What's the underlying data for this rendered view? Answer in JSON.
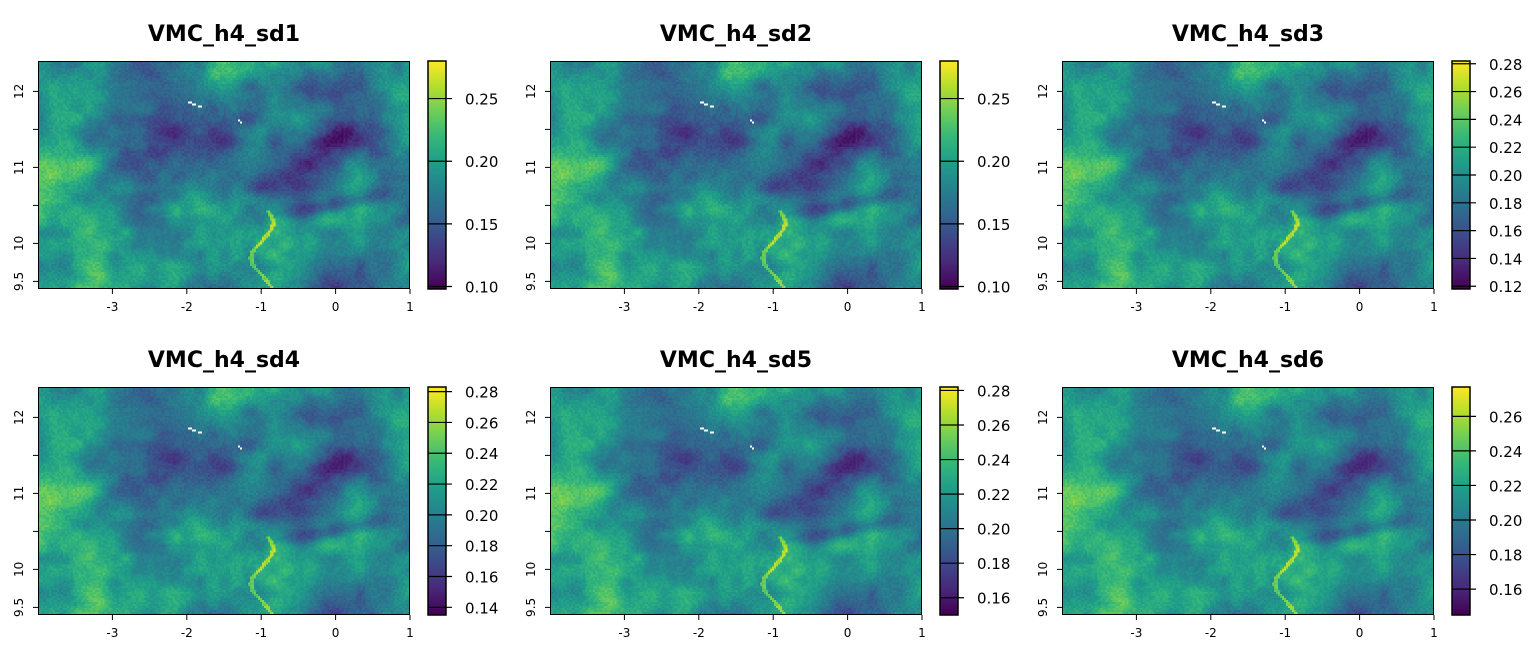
{
  "chart_data": [
    {
      "type": "heatmap",
      "title": "VMC_h4_sd1",
      "xlim": [
        -4,
        1
      ],
      "ylim": [
        9.4,
        12.4
      ],
      "xticks": [
        -3,
        -2,
        -1,
        0,
        1
      ],
      "yticks": [
        9.5,
        10,
        10.5,
        11,
        11.5,
        12
      ],
      "ytick_labels": [
        "9.5",
        "10",
        "",
        "11",
        "",
        "12"
      ],
      "legend": {
        "range": [
          0.098,
          0.28
        ],
        "ticks": [
          0.1,
          0.15,
          0.2,
          0.25
        ],
        "labels": [
          "0.10",
          "0.15",
          "0.20",
          "0.25"
        ]
      }
    },
    {
      "type": "heatmap",
      "title": "VMC_h4_sd2",
      "xlim": [
        -4,
        1
      ],
      "ylim": [
        9.4,
        12.4
      ],
      "xticks": [
        -3,
        -2,
        -1,
        0,
        1
      ],
      "yticks": [
        9.5,
        10,
        10.5,
        11,
        11.5,
        12
      ],
      "ytick_labels": [
        "9.5",
        "10",
        "",
        "11",
        "",
        "12"
      ],
      "legend": {
        "range": [
          0.098,
          0.28
        ],
        "ticks": [
          0.1,
          0.15,
          0.2,
          0.25
        ],
        "labels": [
          "0.10",
          "0.15",
          "0.20",
          "0.25"
        ]
      }
    },
    {
      "type": "heatmap",
      "title": "VMC_h4_sd3",
      "xlim": [
        -4,
        1
      ],
      "ylim": [
        9.4,
        12.4
      ],
      "xticks": [
        -3,
        -2,
        -1,
        0,
        1
      ],
      "yticks": [
        9.5,
        10,
        10.5,
        11,
        11.5,
        12
      ],
      "ytick_labels": [
        "9.5",
        "10",
        "",
        "11",
        "",
        "12"
      ],
      "legend": {
        "range": [
          0.118,
          0.282
        ],
        "ticks": [
          0.12,
          0.14,
          0.16,
          0.18,
          0.2,
          0.22,
          0.24,
          0.26,
          0.28
        ],
        "labels": [
          "0.12",
          "0.14",
          "0.16",
          "0.18",
          "0.20",
          "0.22",
          "0.24",
          "0.26",
          "0.28"
        ]
      }
    },
    {
      "type": "heatmap",
      "title": "VMC_h4_sd4",
      "xlim": [
        -4,
        1
      ],
      "ylim": [
        9.4,
        12.4
      ],
      "xticks": [
        -3,
        -2,
        -1,
        0,
        1
      ],
      "yticks": [
        9.5,
        10,
        10.5,
        11,
        11.5,
        12
      ],
      "ytick_labels": [
        "9.5",
        "10",
        "",
        "11",
        "",
        "12"
      ],
      "legend": {
        "range": [
          0.135,
          0.283
        ],
        "ticks": [
          0.14,
          0.16,
          0.18,
          0.2,
          0.22,
          0.24,
          0.26,
          0.28
        ],
        "labels": [
          "0.14",
          "0.16",
          "0.18",
          "0.20",
          "0.22",
          "0.24",
          "0.26",
          "0.28"
        ]
      }
    },
    {
      "type": "heatmap",
      "title": "VMC_h4_sd5",
      "xlim": [
        -4,
        1
      ],
      "ylim": [
        9.4,
        12.4
      ],
      "xticks": [
        -3,
        -2,
        -1,
        0,
        1
      ],
      "yticks": [
        9.5,
        10,
        10.5,
        11,
        11.5,
        12
      ],
      "ytick_labels": [
        "9.5",
        "10",
        "",
        "11",
        "",
        "12"
      ],
      "legend": {
        "range": [
          0.15,
          0.282
        ],
        "ticks": [
          0.16,
          0.18,
          0.2,
          0.22,
          0.24,
          0.26,
          0.28
        ],
        "labels": [
          "0.16",
          "0.18",
          "0.20",
          "0.22",
          "0.24",
          "0.26",
          "0.28"
        ]
      }
    },
    {
      "type": "heatmap",
      "title": "VMC_h4_sd6",
      "xlim": [
        -4,
        1
      ],
      "ylim": [
        9.4,
        12.4
      ],
      "xticks": [
        -3,
        -2,
        -1,
        0,
        1
      ],
      "yticks": [
        9.5,
        10,
        10.5,
        11,
        11.5,
        12
      ],
      "ytick_labels": [
        "9.5",
        "10",
        "",
        "11",
        "",
        "12"
      ],
      "legend": {
        "range": [
          0.145,
          0.277
        ],
        "ticks": [
          0.16,
          0.18,
          0.2,
          0.22,
          0.24,
          0.26
        ],
        "labels": [
          "0.16",
          "0.18",
          "0.20",
          "0.22",
          "0.24",
          "0.26"
        ]
      }
    }
  ],
  "colormap": "viridis"
}
